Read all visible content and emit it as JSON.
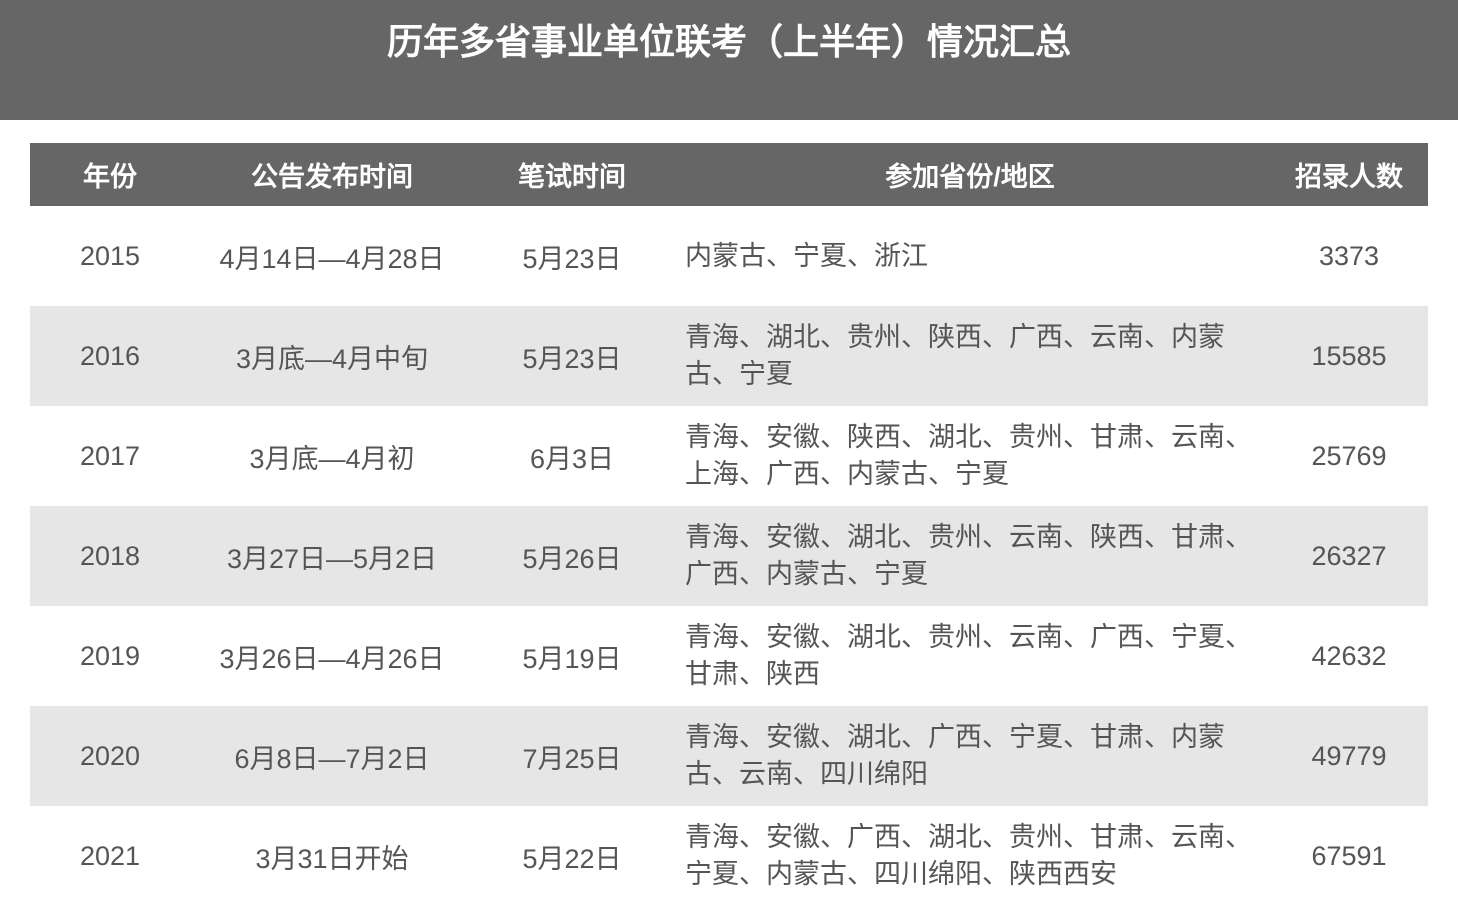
{
  "header": {
    "title": "历年多省事业单位联考（上半年）情况汇总"
  },
  "table": {
    "columns": [
      "年份",
      "公告发布时间",
      "笔试时间",
      "参加省份/地区",
      "招录人数"
    ],
    "rows": [
      [
        "2015",
        "4月14日—4月28日",
        "5月23日",
        "内蒙古、宁夏、浙江",
        "3373"
      ],
      [
        "2016",
        "3月底—4月中旬",
        "5月23日",
        "青海、湖北、贵州、陕西、广西、云南、内蒙古、宁夏",
        "15585"
      ],
      [
        "2017",
        "3月底—4月初",
        "6月3日",
        "青海、安徽、陕西、湖北、贵州、甘肃、云南、上海、广西、内蒙古、宁夏",
        "25769"
      ],
      [
        "2018",
        "3月27日—5月2日",
        "5月26日",
        "青海、安徽、湖北、贵州、云南、陕西、甘肃、广西、内蒙古、宁夏",
        "26327"
      ],
      [
        "2019",
        "3月26日—4月26日",
        "5月19日",
        "青海、安徽、湖北、贵州、云南、广西、宁夏、甘肃、陕西",
        "42632"
      ],
      [
        "2020",
        "6月8日—7月2日",
        "7月25日",
        "青海、安徽、湖北、广西、宁夏、甘肃、内蒙古、云南、四川绵阳",
        "49779"
      ],
      [
        "2021",
        "3月31日开始",
        "5月22日",
        "青海、安徽、广西、湖北、贵州、甘肃、云南、宁夏、内蒙古、四川绵阳、陕西西安",
        "67591"
      ]
    ]
  }
}
